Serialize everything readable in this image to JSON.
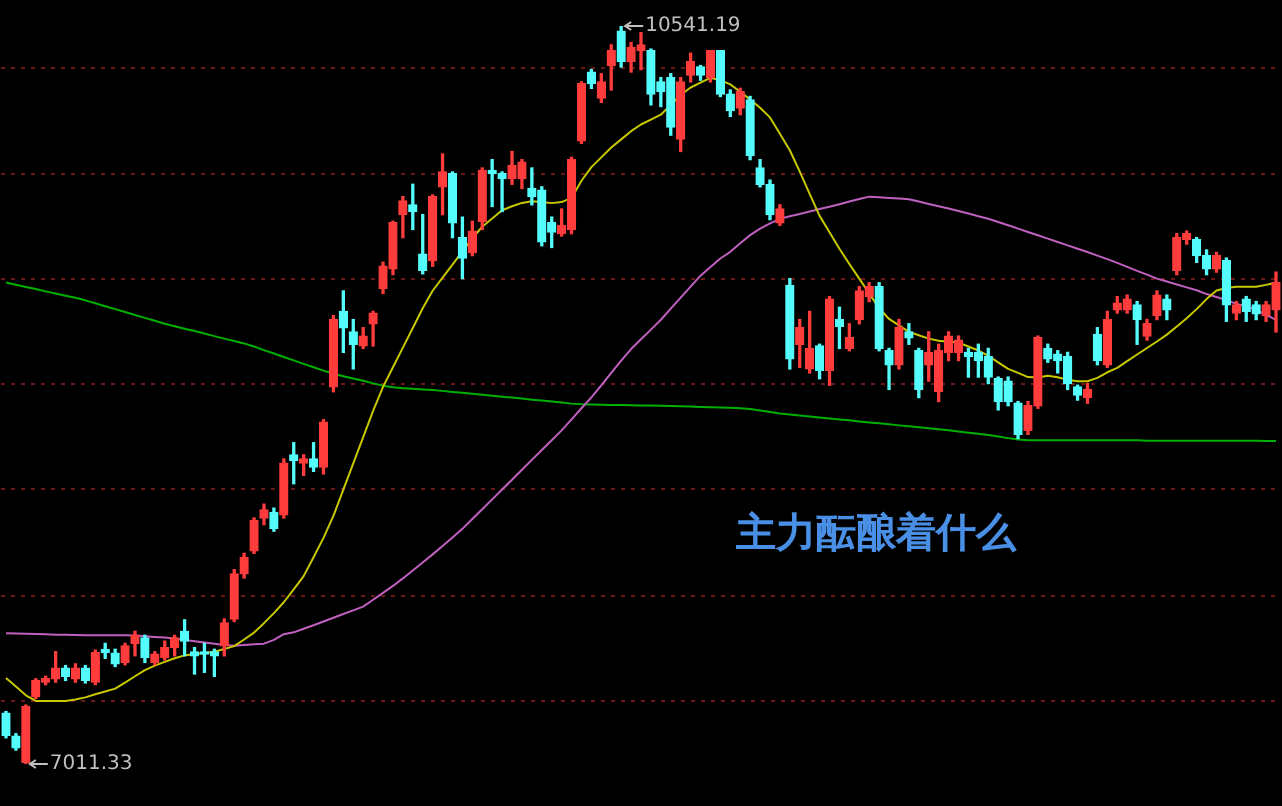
{
  "chart_data": {
    "type": "candlestick",
    "categories": [
      null,
      null,
      null,
      null,
      null,
      null,
      null,
      null,
      null,
      null,
      null,
      null,
      null,
      null,
      null,
      null,
      null,
      null,
      null,
      null,
      null,
      null,
      null,
      null,
      null,
      null,
      null,
      null,
      null,
      null,
      null,
      null,
      null,
      null,
      null,
      null,
      null,
      null,
      null,
      null,
      null,
      null,
      null,
      null,
      null,
      null,
      null,
      null,
      null,
      null,
      null,
      null,
      null,
      null,
      null,
      null,
      null,
      null,
      null,
      null,
      null,
      null,
      null,
      null,
      null,
      null,
      null,
      null,
      null,
      null,
      null,
      null,
      null,
      null,
      null,
      null,
      null,
      null,
      null,
      null,
      null,
      null,
      null,
      null,
      null,
      null,
      null,
      null,
      null,
      null,
      null,
      null,
      null,
      null,
      null,
      null,
      null,
      null,
      null,
      null,
      null,
      null,
      null,
      null,
      null,
      null,
      null,
      null,
      null,
      null,
      null,
      null,
      null,
      null,
      null,
      null,
      null,
      null,
      null,
      null,
      null,
      null,
      null,
      null,
      null,
      null,
      null,
      null,
      null
    ],
    "ohlc": [
      [
        7254,
        7262,
        7137,
        7148
      ],
      [
        7144,
        7156,
        7078,
        7089
      ],
      [
        7019,
        7293,
        7011.33,
        7286
      ],
      [
        7333,
        7419,
        7325,
        7411
      ],
      [
        7403,
        7431,
        7391,
        7419
      ],
      [
        7419,
        7548,
        7403,
        7470
      ],
      [
        7470,
        7482,
        7411,
        7431
      ],
      [
        7419,
        7490,
        7403,
        7470
      ],
      [
        7470,
        7482,
        7399,
        7411
      ],
      [
        7403,
        7556,
        7391,
        7544
      ],
      [
        7560,
        7588,
        7517,
        7544
      ],
      [
        7541,
        7560,
        7478,
        7490
      ],
      [
        7497,
        7588,
        7486,
        7576
      ],
      [
        7588,
        7646,
        7529,
        7627
      ],
      [
        7615,
        7627,
        7497,
        7521
      ],
      [
        7497,
        7548,
        7486,
        7537
      ],
      [
        7521,
        7599,
        7509,
        7568
      ],
      [
        7568,
        7627,
        7529,
        7615
      ],
      [
        7646,
        7701,
        7529,
        7599
      ],
      [
        7548,
        7568,
        7442,
        7529
      ],
      [
        7548,
        7588,
        7450,
        7537
      ],
      [
        7548,
        7560,
        7431,
        7529
      ],
      [
        7576,
        7705,
        7529,
        7686
      ],
      [
        7705,
        7941,
        7693,
        7921
      ],
      [
        7921,
        8019,
        7901,
        7999
      ],
      [
        8031,
        8188,
        8019,
        8176
      ],
      [
        8188,
        8254,
        8156,
        8227
      ],
      [
        8215,
        8235,
        8125,
        8137
      ],
      [
        8203,
        8470,
        8188,
        8450
      ],
      [
        8490,
        8548,
        8352,
        8462
      ],
      [
        8450,
        8490,
        8392,
        8470
      ],
      [
        8470,
        8548,
        8411,
        8431
      ],
      [
        8431,
        8658,
        8399,
        8646
      ],
      [
        8815,
        9156,
        8792,
        9137
      ],
      [
        9176,
        9274,
        8980,
        9098
      ],
      [
        9078,
        9137,
        8901,
        9019
      ],
      [
        9011,
        9098,
        8999,
        9058
      ],
      [
        9117,
        9176,
        9011,
        9168
      ],
      [
        9286,
        9411,
        9262,
        9392
      ],
      [
        9380,
        9607,
        9352,
        9600
      ],
      [
        9639,
        9725,
        9529,
        9705
      ],
      [
        9686,
        9784,
        9568,
        9654
      ],
      [
        9450,
        9639,
        9356,
        9372
      ],
      [
        9419,
        9733,
        9392,
        9725
      ],
      [
        9772,
        9929,
        9639,
        9843
      ],
      [
        9835,
        9843,
        9529,
        9600
      ],
      [
        9529,
        9627,
        9333,
        9431
      ],
      [
        9458,
        9607,
        9443,
        9560
      ],
      [
        9607,
        9862,
        9568,
        9851
      ],
      [
        9851,
        9902,
        9678,
        9835
      ],
      [
        9835,
        9843,
        9654,
        9811
      ],
      [
        9811,
        9941,
        9784,
        9874
      ],
      [
        9811,
        9902,
        9764,
        9890
      ],
      [
        9764,
        9862,
        9686,
        9725
      ],
      [
        9756,
        9772,
        9490,
        9509
      ],
      [
        9600,
        9627,
        9482,
        9556
      ],
      [
        9548,
        9666,
        9537,
        9588
      ],
      [
        9568,
        9913,
        9548,
        9902
      ],
      [
        9992,
        10274,
        9980,
        10266
      ],
      [
        10321,
        10333,
        10243,
        10266
      ],
      [
        10196,
        10313,
        10176,
        10274
      ],
      [
        10352,
        10451,
        10235,
        10423
      ],
      [
        10517,
        10541.19,
        10345,
        10372
      ],
      [
        10372,
        10462,
        10321,
        10439
      ],
      [
        10423,
        10509,
        10333,
        10451
      ],
      [
        10423,
        10431,
        10164,
        10215
      ],
      [
        10274,
        10294,
        10156,
        10227
      ],
      [
        10294,
        10313,
        10019,
        10058
      ],
      [
        10000,
        10294,
        9941,
        10274
      ],
      [
        10306,
        10411,
        10274,
        10372
      ],
      [
        10345,
        10352,
        10282,
        10306
      ],
      [
        10294,
        10423,
        10274,
        10423
      ],
      [
        10423,
        10423,
        10204,
        10215
      ],
      [
        10215,
        10235,
        10109,
        10137
      ],
      [
        10149,
        10243,
        10117,
        10227
      ],
      [
        10188,
        10204,
        9902,
        9921
      ],
      [
        9862,
        9902,
        9772,
        9784
      ],
      [
        9784,
        9804,
        9615,
        9639
      ],
      [
        9600,
        9686,
        9588,
        9666
      ],
      [
        9301,
        9333,
        8901,
        8949
      ],
      [
        9019,
        9137,
        8909,
        9098
      ],
      [
        8901,
        9176,
        8882,
        8999
      ],
      [
        9011,
        9019,
        8854,
        8894
      ],
      [
        8894,
        9247,
        8823,
        9235
      ],
      [
        9137,
        9196,
        8999,
        9105
      ],
      [
        8999,
        9117,
        8988,
        9050
      ],
      [
        9137,
        9294,
        9117,
        9274
      ],
      [
        9247,
        9313,
        9223,
        9294
      ],
      [
        9294,
        9313,
        8988,
        8999
      ],
      [
        8988,
        8999,
        8803,
        8921
      ],
      [
        8921,
        9137,
        8901,
        9098
      ],
      [
        9078,
        9117,
        9019,
        9050
      ],
      [
        8988,
        8999,
        8764,
        8803
      ],
      [
        8921,
        9078,
        8843,
        8980
      ],
      [
        8792,
        9019,
        8745,
        8988
      ],
      [
        8980,
        9078,
        8941,
        9058
      ],
      [
        8980,
        9058,
        8941,
        9039
      ],
      [
        8980,
        8999,
        8862,
        8960
      ],
      [
        8980,
        9019,
        8862,
        8941
      ],
      [
        8960,
        8999,
        8831,
        8862
      ],
      [
        8854,
        8862,
        8705,
        8745
      ],
      [
        8843,
        8862,
        8725,
        8745
      ],
      [
        8737,
        8745,
        8568,
        8588
      ],
      [
        8607,
        8745,
        8588,
        8725
      ],
      [
        8725,
        9058,
        8713,
        9050
      ],
      [
        8999,
        9019,
        8933,
        8949
      ],
      [
        8972,
        8988,
        8882,
        8941
      ],
      [
        8960,
        8980,
        8803,
        8831
      ],
      [
        8815,
        8823,
        8752,
        8776
      ],
      [
        8764,
        8831,
        8737,
        8803
      ],
      [
        9066,
        9098,
        8921,
        8941
      ],
      [
        8921,
        9176,
        8909,
        9137
      ],
      [
        9184,
        9247,
        9168,
        9215
      ],
      [
        9184,
        9254,
        9168,
        9235
      ],
      [
        9207,
        9223,
        9019,
        9137
      ],
      [
        9058,
        9137,
        9039,
        9117
      ],
      [
        9156,
        9274,
        9137,
        9254
      ],
      [
        9235,
        9254,
        9137,
        9184
      ],
      [
        9372,
        9548,
        9352,
        9529
      ],
      [
        9521,
        9560,
        9498,
        9548
      ],
      [
        9521,
        9529,
        9411,
        9443
      ],
      [
        9443,
        9470,
        9352,
        9380
      ],
      [
        9380,
        9458,
        9364,
        9443
      ],
      [
        9419,
        9431,
        9129,
        9207
      ],
      [
        9168,
        9223,
        9137,
        9207
      ],
      [
        9235,
        9247,
        9129,
        9176
      ],
      [
        9207,
        9223,
        9137,
        9164
      ],
      [
        9156,
        9223,
        9129,
        9207
      ],
      [
        9184,
        9364,
        9078,
        9313
      ]
    ],
    "colors": [
      "#54fcfc",
      "#54fcfc",
      "#ff3c3c",
      "#ff3c3c",
      "#ff3c3c",
      "#ff3c3c",
      "#54fcfc",
      "#ff3c3c",
      "#54fcfc",
      "#ff3c3c",
      "#54fcfc",
      "#54fcfc",
      "#ff3c3c",
      "#ff3c3c",
      "#54fcfc",
      "#ff3c3c",
      "#ff3c3c",
      "#ff3c3c",
      "#54fcfc",
      "#54fcfc",
      "#54fcfc",
      "#54fcfc",
      "#ff3c3c",
      "#ff3c3c",
      "#ff3c3c",
      "#ff3c3c",
      "#ff3c3c",
      "#54fcfc",
      "#ff3c3c",
      "#54fcfc",
      "#ff3c3c",
      "#54fcfc",
      "#ff3c3c",
      "#ff3c3c",
      "#54fcfc",
      "#54fcfc",
      "#ff3c3c",
      "#ff3c3c",
      "#ff3c3c",
      "#ff3c3c",
      "#ff3c3c",
      "#54fcfc",
      "#54fcfc",
      "#ff3c3c",
      "#ff3c3c",
      "#54fcfc",
      "#54fcfc",
      "#ff3c3c",
      "#ff3c3c",
      "#54fcfc",
      "#54fcfc",
      "#ff3c3c",
      "#ff3c3c",
      "#54fcfc",
      "#54fcfc",
      "#54fcfc",
      "#ff3c3c",
      "#ff3c3c",
      "#ff3c3c",
      "#54fcfc",
      "#ff3c3c",
      "#ff3c3c",
      "#54fcfc",
      "#ff3c3c",
      "#ff3c3c",
      "#54fcfc",
      "#54fcfc",
      "#54fcfc",
      "#ff3c3c",
      "#ff3c3c",
      "#54fcfc",
      "#ff3c3c",
      "#54fcfc",
      "#54fcfc",
      "#ff3c3c",
      "#54fcfc",
      "#54fcfc",
      "#54fcfc",
      "#ff3c3c",
      "#54fcfc",
      "#ff3c3c",
      "#ff3c3c",
      "#54fcfc",
      "#ff3c3c",
      "#54fcfc",
      "#ff3c3c",
      "#ff3c3c",
      "#ff3c3c",
      "#54fcfc",
      "#54fcfc",
      "#ff3c3c",
      "#54fcfc",
      "#54fcfc",
      "#ff3c3c",
      "#ff3c3c",
      "#ff3c3c",
      "#ff3c3c",
      "#54fcfc",
      "#54fcfc",
      "#54fcfc",
      "#54fcfc",
      "#54fcfc",
      "#54fcfc",
      "#ff3c3c",
      "#ff3c3c",
      "#54fcfc",
      "#54fcfc",
      "#54fcfc",
      "#54fcfc",
      "#ff3c3c",
      "#54fcfc",
      "#ff3c3c",
      "#ff3c3c",
      "#ff3c3c",
      "#54fcfc",
      "#ff3c3c",
      "#ff3c3c",
      "#54fcfc",
      "#ff3c3c",
      "#ff3c3c",
      "#54fcfc",
      "#54fcfc",
      "#ff3c3c",
      "#54fcfc",
      "#ff3c3c",
      "#54fcfc",
      "#54fcfc",
      "#ff3c3c",
      "#ff3c3c"
    ],
    "series": [
      {
        "type": "line",
        "color": "#c8c800",
        "values": [
          7423,
          7382,
          7340,
          7313,
          7313,
          7313,
          7313,
          7320,
          7330,
          7345,
          7358,
          7372,
          7401,
          7431,
          7460,
          7482,
          7500,
          7517,
          7531,
          7536,
          7542,
          7548,
          7561,
          7575,
          7607,
          7640,
          7685,
          7733,
          7785,
          7847,
          7910,
          8000,
          8093,
          8198,
          8324,
          8449,
          8575,
          8700,
          8815,
          8909,
          9003,
          9097,
          9191,
          9275,
          9338,
          9400,
          9463,
          9526,
          9581,
          9620,
          9660,
          9679,
          9695,
          9703,
          9699,
          9694,
          9699,
          9719,
          9801,
          9866,
          9913,
          9960,
          9999,
          10038,
          10070,
          10093,
          10117,
          10164,
          10211,
          10247,
          10270,
          10293,
          10282,
          10262,
          10227,
          10189,
          10150,
          10104,
          10026,
          9947,
          9845,
          9738,
          9633,
          9555,
          9476,
          9403,
          9333,
          9262,
          9191,
          9140,
          9109,
          9078,
          9062,
          9046,
          9036,
          9031,
          9027,
          9008,
          8989,
          8964,
          8932,
          8901,
          8882,
          8862,
          8860,
          8868,
          8861,
          8849,
          8842,
          8842,
          8858,
          8885,
          8906,
          8938,
          8970,
          9001,
          9032,
          9065,
          9104,
          9143,
          9187,
          9235,
          9276,
          9288,
          9294,
          9294,
          9294,
          9303,
          9313
        ]
      },
      {
        "type": "line",
        "color": "#c060c0",
        "values": [
          7637,
          7635,
          7634,
          7633,
          7632,
          7630,
          7629,
          7628,
          7627,
          7627,
          7627,
          7627,
          7627,
          7626,
          7622,
          7619,
          7616,
          7612,
          7605,
          7599,
          7592,
          7586,
          7580,
          7577,
          7580,
          7584,
          7587,
          7605,
          7632,
          7641,
          7658,
          7675,
          7693,
          7711,
          7729,
          7746,
          7764,
          7797,
          7830,
          7863,
          7899,
          7937,
          7975,
          8014,
          8054,
          8095,
          8136,
          8183,
          8230,
          8277,
          8324,
          8371,
          8419,
          8466,
          8513,
          8560,
          8607,
          8660,
          8713,
          8765,
          8822,
          8882,
          8941,
          8996,
          9043,
          9089,
          9136,
          9189,
          9242,
          9295,
          9347,
          9388,
          9429,
          9461,
          9502,
          9541,
          9572,
          9597,
          9619,
          9631,
          9642,
          9654,
          9666,
          9677,
          9689,
          9702,
          9714,
          9725,
          9722,
          9719,
          9716,
          9713,
          9702,
          9690,
          9679,
          9668,
          9656,
          9644,
          9631,
          9619,
          9604,
          9588,
          9572,
          9556,
          9540,
          9524,
          9508,
          9492,
          9476,
          9460,
          9443,
          9426,
          9408,
          9389,
          9370,
          9352,
          9333,
          9319,
          9305,
          9291,
          9277,
          9259,
          9245,
          9230,
          9212,
          9201,
          9183,
          9159,
          9136
        ]
      },
      {
        "type": "line",
        "color": "#00b000",
        "values": [
          9314,
          9304,
          9293,
          9283,
          9272,
          9262,
          9251,
          9241,
          9229,
          9215,
          9201,
          9187,
          9173,
          9159,
          9145,
          9131,
          9117,
          9105,
          9093,
          9082,
          9070,
          9058,
          9046,
          9035,
          9023,
          9008,
          8991,
          8975,
          8958,
          8942,
          8925,
          8909,
          8893,
          8878,
          8866,
          8855,
          8844,
          8832,
          8821,
          8813,
          8809,
          8806,
          8803,
          8800,
          8796,
          8791,
          8787,
          8782,
          8778,
          8773,
          8768,
          8764,
          8759,
          8754,
          8750,
          8745,
          8740,
          8735,
          8732,
          8731,
          8730,
          8729,
          8728,
          8727,
          8726,
          8726,
          8725,
          8724,
          8722,
          8721,
          8719,
          8718,
          8716,
          8715,
          8713,
          8709,
          8702,
          8695,
          8688,
          8683,
          8678,
          8673,
          8669,
          8664,
          8659,
          8655,
          8650,
          8645,
          8641,
          8636,
          8631,
          8627,
          8622,
          8617,
          8613,
          8608,
          8602,
          8596,
          8591,
          8585,
          8578,
          8570,
          8563,
          8560,
          8560,
          8560,
          8560,
          8560,
          8560,
          8560,
          8560,
          8560,
          8560,
          8560,
          8560,
          8558,
          8558,
          8558,
          8558,
          8558,
          8558,
          8558,
          8558,
          8558,
          8558,
          8557,
          8557,
          8556,
          8556
        ]
      }
    ],
    "yticks": [
      {
        "value": 7313,
        "label": null
      },
      {
        "value": 7815,
        "label": null
      },
      {
        "value": 8325,
        "label": null
      },
      {
        "value": 8831,
        "label": null
      },
      {
        "value": 9333,
        "label": null
      },
      {
        "value": 9835,
        "label": null
      },
      {
        "value": 10341,
        "label": null
      }
    ],
    "grid": "y",
    "annotations": [
      "10541.19",
      "7011.33",
      "主力酝酿着什么"
    ]
  }
}
